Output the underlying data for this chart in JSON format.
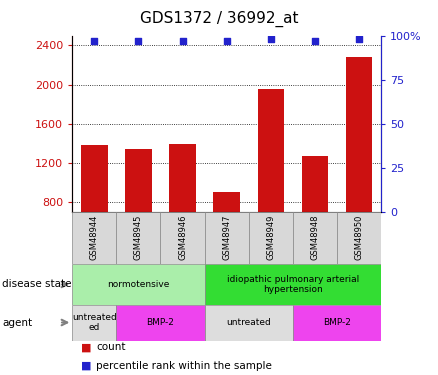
{
  "title": "GDS1372 / 36992_at",
  "samples": [
    "GSM48944",
    "GSM48945",
    "GSM48946",
    "GSM48947",
    "GSM48949",
    "GSM48948",
    "GSM48950"
  ],
  "counts": [
    1380,
    1340,
    1390,
    900,
    1960,
    1270,
    2280
  ],
  "percentile_ranks": [
    97,
    97,
    97,
    97,
    98,
    97,
    98
  ],
  "ylim_left": [
    700,
    2500
  ],
  "ylim_right": [
    0,
    100
  ],
  "yticks_left": [
    800,
    1200,
    1600,
    2000,
    2400
  ],
  "yticks_right": [
    0,
    25,
    50,
    75,
    100
  ],
  "bar_color": "#cc1111",
  "dot_color": "#2222cc",
  "disease_state_groups": [
    {
      "label": "normotensive",
      "start": 0,
      "end": 3,
      "color": "#aaeeaa"
    },
    {
      "label": "idiopathic pulmonary arterial\nhypertension",
      "start": 3,
      "end": 7,
      "color": "#33dd33"
    }
  ],
  "agent_groups": [
    {
      "label": "untreated\ned",
      "start": 0,
      "end": 1,
      "color": "#dddddd"
    },
    {
      "label": "BMP-2",
      "start": 1,
      "end": 3,
      "color": "#ee44ee"
    },
    {
      "label": "untreated",
      "start": 3,
      "end": 5,
      "color": "#dddddd"
    },
    {
      "label": "BMP-2",
      "start": 5,
      "end": 7,
      "color": "#ee44ee"
    }
  ],
  "legend_count_label": "count",
  "legend_pct_label": "percentile rank within the sample",
  "disease_state_label": "disease state",
  "agent_label": "agent",
  "title_fontsize": 11,
  "tick_label_fontsize": 8,
  "annotation_fontsize": 7.5
}
